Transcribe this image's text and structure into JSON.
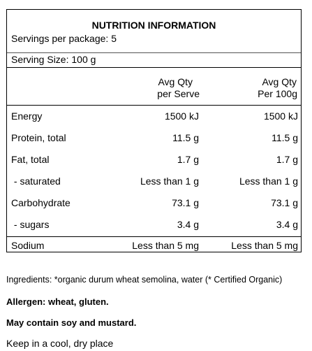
{
  "panel": {
    "title": "NUTRITION INFORMATION",
    "servings_per_package": "Servings per package: 5",
    "serving_size": "Serving Size: 100 g",
    "columns": [
      {
        "line1": "Avg Qty",
        "line2": "per Serve"
      },
      {
        "line1": "Avg Qty",
        "line2": "Per 100g"
      }
    ],
    "rows": [
      {
        "name": "Energy",
        "per_serve": "1500 kJ",
        "per_100g": "1500 kJ"
      },
      {
        "name": "Protein, total",
        "per_serve": "11.5 g",
        "per_100g": "11.5 g"
      },
      {
        "name": "Fat, total",
        "per_serve": "1.7 g",
        "per_100g": "1.7 g"
      },
      {
        "name": " - saturated",
        "per_serve": "Less than 1 g",
        "per_100g": "Less than 1 g"
      },
      {
        "name": "Carbohydrate",
        "per_serve": "73.1 g",
        "per_100g": "73.1 g"
      },
      {
        "name": " - sugars",
        "per_serve": "3.4 g",
        "per_100g": "3.4 g"
      },
      {
        "name": "Sodium",
        "per_serve": "Less than 5 mg",
        "per_100g": "Less than 5 mg"
      }
    ]
  },
  "ingredients": "Ingredients: *organic durum wheat semolina, water (* Certified Organic)",
  "allergen": "Allergen: wheat, gluten.",
  "may_contain": "May contain soy and mustard.",
  "storage": "Keep in a cool, dry place"
}
